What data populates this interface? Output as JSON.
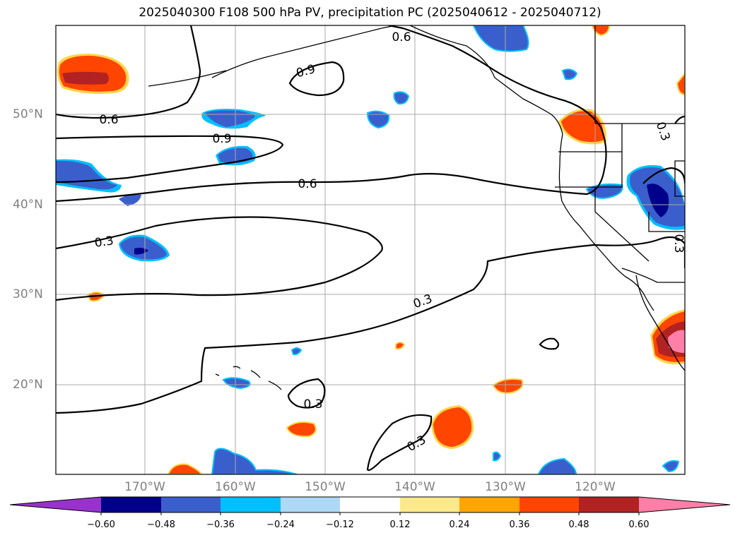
{
  "title": "2025040300 F108 500 hPa PV, precipitation PC (2025040612 - 2025040712)",
  "lat_labels": [
    "50°N",
    "40°N",
    "30°N",
    "20°N"
  ],
  "lon_labels": [
    "170°W",
    "160°W",
    "150°W",
    "140°W",
    "130°W",
    "120°W"
  ],
  "contour_labels": [
    "0.6",
    "0.9",
    "0.6",
    "0.9",
    "0.6",
    "0.3",
    "0.3",
    "0.3",
    "0.3",
    "0.3",
    "0.3"
  ],
  "colorbar": {
    "ticks": [
      "−0.60",
      "−0.48",
      "−0.36",
      "−0.24",
      "−0.12",
      "0.12",
      "0.24",
      "0.36",
      "0.48",
      "0.60"
    ],
    "colors": [
      "#9932cc",
      "#00008b",
      "#3a5fcd",
      "#00bfff",
      "#add8f6",
      "#ffffff",
      "#fce98c",
      "#ffa500",
      "#ff4500",
      "#b22222",
      "#ff7fa8"
    ]
  },
  "field_colors": {
    "blue": "#3a5fcd",
    "navy": "#00008b",
    "cyan": "#00bfff",
    "orange": "#ff4500",
    "darkred": "#b22222",
    "pink": "#ff7fa8",
    "yellow": "#ffd54a"
  }
}
